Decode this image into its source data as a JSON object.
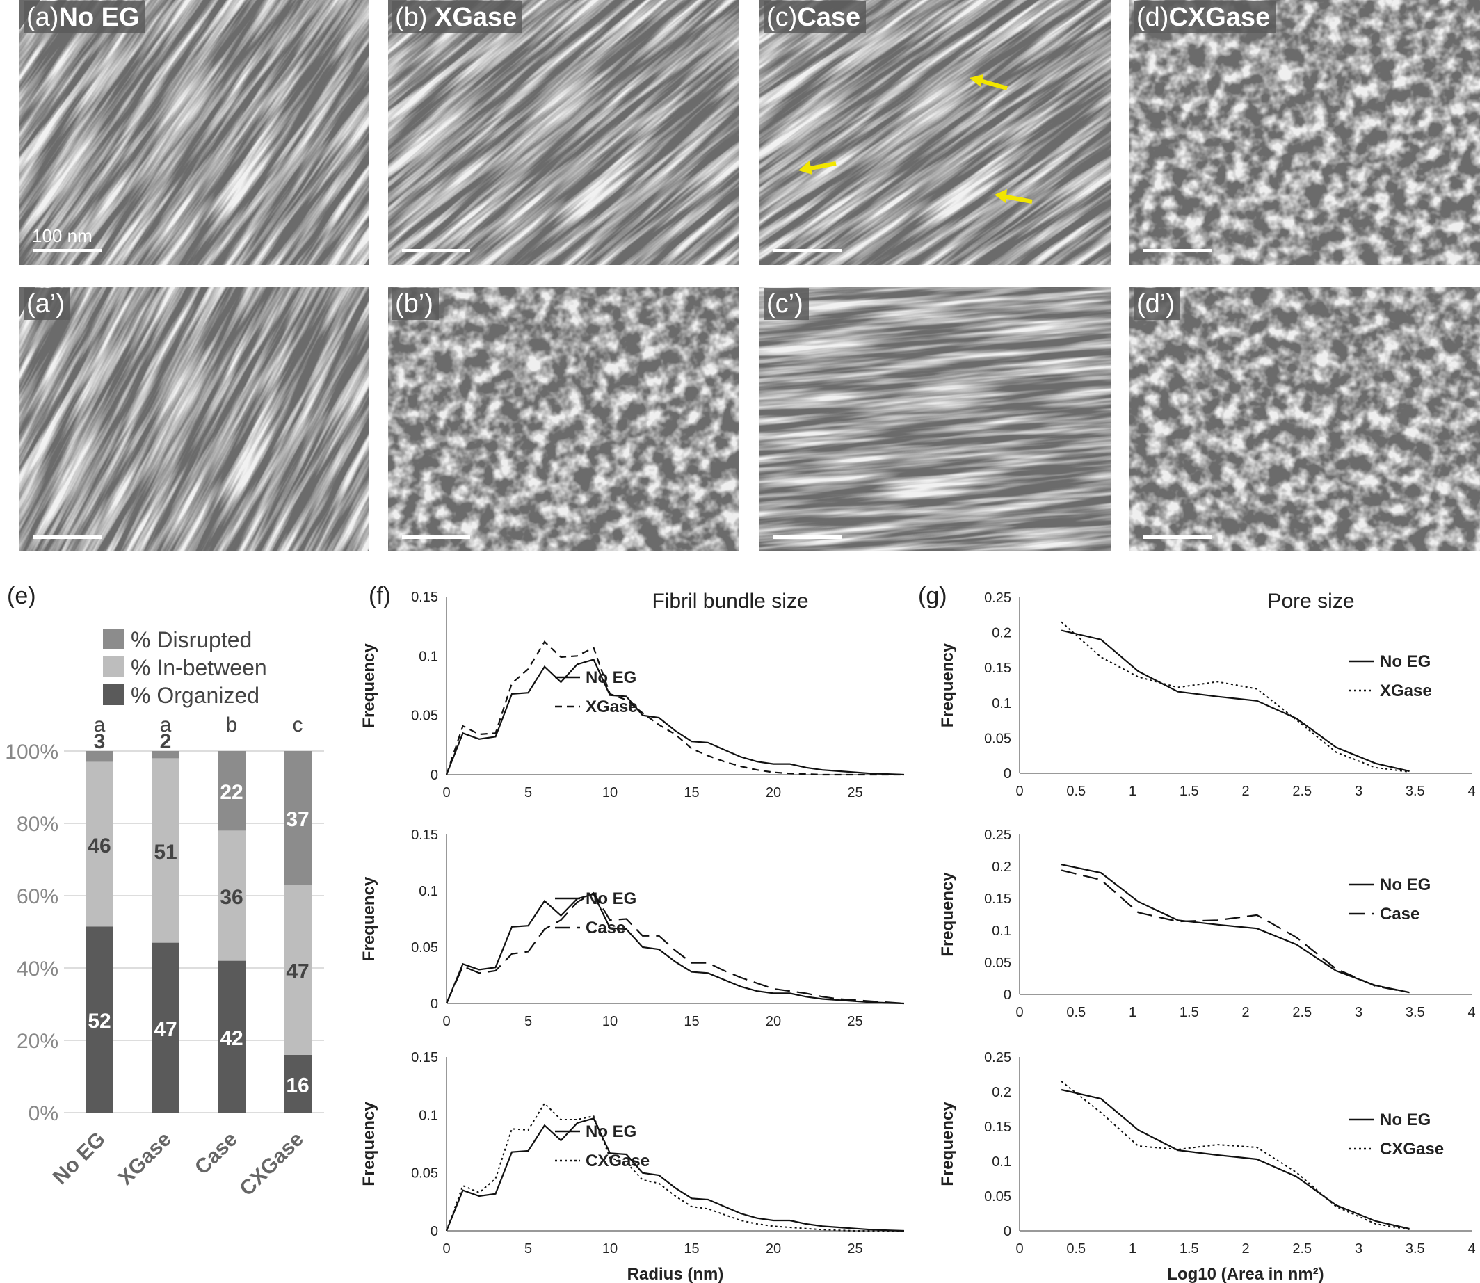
{
  "colors": {
    "disrupted": "#8c8c8c",
    "in_between": "#bdbdbd",
    "organized": "#5a5a5a",
    "label_bg": "#5a5a5a",
    "arrow": "#f2e600"
  },
  "panels": {
    "a": {
      "letter": "(a)",
      "title": "No EG",
      "scale": "100 nm"
    },
    "b": {
      "letter": "(b)",
      "title": "XGase"
    },
    "c": {
      "letter": "(c)",
      "title": "Case"
    },
    "d": {
      "letter": "(d)",
      "title": "CXGase"
    },
    "a2": {
      "letter": "(a’)"
    },
    "b2": {
      "letter": "(b’)"
    },
    "c2": {
      "letter": "(c’)"
    },
    "d2": {
      "letter": "(d’)"
    }
  },
  "fig_letters": {
    "e": "(e)",
    "f": "(f)",
    "g": "(g)"
  },
  "chart_data": [
    {
      "id": "e",
      "type": "bar",
      "stacked": true,
      "categories": [
        "No EG",
        "XGase",
        "Case",
        "CXGase"
      ],
      "significance_letters": [
        "a",
        "a",
        "b",
        "c"
      ],
      "series": [
        {
          "name": "% Organized",
          "values": [
            52,
            47,
            42,
            16
          ]
        },
        {
          "name": "% In-between",
          "values": [
            46,
            51,
            36,
            47
          ]
        },
        {
          "name": "% Disrupted",
          "values": [
            3,
            2,
            22,
            37
          ]
        }
      ],
      "yticks": [
        "0%",
        "20%",
        "40%",
        "60%",
        "80%",
        "100%"
      ],
      "ylim": [
        0,
        100
      ],
      "legend_placement": "top"
    },
    {
      "id": "f1",
      "type": "line",
      "title": "Fibril bundle size",
      "xlabel": "Radius (nm)",
      "ylabel": "Frequency",
      "xlim": [
        0,
        28
      ],
      "ylim": [
        0,
        0.15
      ],
      "xticks": [
        "0",
        "5",
        "10",
        "15",
        "20",
        "25"
      ],
      "yticks": [
        "0",
        "0.05",
        "0.1",
        "0.15"
      ],
      "legend_placement": "right",
      "series": [
        {
          "name": "No EG",
          "dash": "solid",
          "x": [
            0,
            1,
            2,
            3,
            4,
            5,
            6,
            7,
            8,
            9,
            10,
            11,
            12,
            13,
            14,
            15,
            16,
            17,
            18,
            19,
            20,
            21,
            22,
            23,
            24,
            25,
            26,
            27,
            28
          ],
          "y": [
            0,
            0.035,
            0.03,
            0.032,
            0.068,
            0.069,
            0.091,
            0.078,
            0.093,
            0.097,
            0.067,
            0.066,
            0.05,
            0.048,
            0.037,
            0.028,
            0.027,
            0.021,
            0.015,
            0.011,
            0.009,
            0.009,
            0.006,
            0.004,
            0.003,
            0.002,
            0.001,
            0.0005,
            0
          ]
        },
        {
          "name": "XGase",
          "dash": "dashed",
          "x": [
            0,
            1,
            2,
            3,
            4,
            5,
            6,
            7,
            8,
            9,
            10,
            11,
            12,
            13,
            14,
            15,
            16,
            17,
            18,
            19,
            20,
            21,
            22,
            23,
            24,
            25,
            26,
            27,
            28
          ],
          "y": [
            0,
            0.041,
            0.034,
            0.035,
            0.077,
            0.089,
            0.112,
            0.099,
            0.1,
            0.107,
            0.068,
            0.063,
            0.052,
            0.042,
            0.034,
            0.022,
            0.016,
            0.011,
            0.007,
            0.004,
            0.002,
            0.001,
            0.0005,
            0,
            0,
            0,
            0,
            0,
            0
          ]
        }
      ]
    },
    {
      "id": "f2",
      "type": "line",
      "xlabel": "Radius (nm)",
      "ylabel": "Frequency",
      "xlim": [
        0,
        28
      ],
      "ylim": [
        0,
        0.15
      ],
      "xticks": [
        "0",
        "5",
        "10",
        "15",
        "20",
        "25"
      ],
      "yticks": [
        "0",
        "0.05",
        "0.1",
        "0.15"
      ],
      "legend_placement": "right",
      "series": [
        {
          "name": "No EG",
          "dash": "solid",
          "x": [
            0,
            1,
            2,
            3,
            4,
            5,
            6,
            7,
            8,
            9,
            10,
            11,
            12,
            13,
            14,
            15,
            16,
            17,
            18,
            19,
            20,
            21,
            22,
            23,
            24,
            25,
            26,
            27,
            28
          ],
          "y": [
            0,
            0.035,
            0.03,
            0.032,
            0.068,
            0.069,
            0.091,
            0.078,
            0.093,
            0.097,
            0.067,
            0.066,
            0.05,
            0.048,
            0.037,
            0.028,
            0.027,
            0.021,
            0.015,
            0.011,
            0.009,
            0.009,
            0.006,
            0.004,
            0.003,
            0.002,
            0.001,
            0.0005,
            0
          ]
        },
        {
          "name": "Case",
          "dash": "longdash",
          "x": [
            0,
            1,
            2,
            3,
            4,
            5,
            6,
            7,
            8,
            9,
            10,
            11,
            12,
            13,
            14,
            15,
            16,
            17,
            18,
            19,
            20,
            21,
            22,
            23,
            24,
            25,
            26,
            27,
            28
          ],
          "y": [
            0,
            0.033,
            0.027,
            0.029,
            0.044,
            0.046,
            0.066,
            0.074,
            0.09,
            0.098,
            0.074,
            0.075,
            0.06,
            0.06,
            0.047,
            0.036,
            0.036,
            0.029,
            0.023,
            0.018,
            0.013,
            0.011,
            0.009,
            0.006,
            0.004,
            0.003,
            0.002,
            0.001,
            0
          ]
        }
      ]
    },
    {
      "id": "f3",
      "type": "line",
      "xlabel": "Radius (nm)",
      "ylabel": "Frequency",
      "xlim": [
        0,
        28
      ],
      "ylim": [
        0,
        0.15
      ],
      "xticks": [
        "0",
        "5",
        "10",
        "15",
        "20",
        "25"
      ],
      "yticks": [
        "0",
        "0.05",
        "0.1",
        "0.15"
      ],
      "legend_placement": "right",
      "series": [
        {
          "name": "No EG",
          "dash": "solid",
          "x": [
            0,
            1,
            2,
            3,
            4,
            5,
            6,
            7,
            8,
            9,
            10,
            11,
            12,
            13,
            14,
            15,
            16,
            17,
            18,
            19,
            20,
            21,
            22,
            23,
            24,
            25,
            26,
            27,
            28
          ],
          "y": [
            0,
            0.035,
            0.03,
            0.032,
            0.068,
            0.069,
            0.091,
            0.078,
            0.093,
            0.097,
            0.067,
            0.066,
            0.05,
            0.048,
            0.037,
            0.028,
            0.027,
            0.021,
            0.015,
            0.011,
            0.009,
            0.009,
            0.006,
            0.004,
            0.003,
            0.002,
            0.001,
            0.0005,
            0
          ]
        },
        {
          "name": "CXGase",
          "dash": "dotted",
          "x": [
            0,
            1,
            2,
            3,
            4,
            5,
            6,
            7,
            8,
            9,
            10,
            11,
            12,
            13,
            14,
            15,
            16,
            17,
            18,
            19,
            20,
            21,
            22,
            23,
            24,
            25,
            26,
            27,
            28
          ],
          "y": [
            0,
            0.039,
            0.033,
            0.045,
            0.088,
            0.087,
            0.11,
            0.096,
            0.096,
            0.099,
            0.063,
            0.059,
            0.044,
            0.041,
            0.03,
            0.021,
            0.019,
            0.014,
            0.009,
            0.006,
            0.004,
            0.003,
            0.002,
            0.001,
            0.0005,
            0,
            0,
            0,
            0
          ]
        }
      ]
    },
    {
      "id": "g1",
      "type": "line",
      "title": "Pore size",
      "xlabel": "Log10 (Area in nm²)",
      "ylabel": "Frequency",
      "xlim": [
        0,
        4
      ],
      "ylim": [
        0,
        0.25
      ],
      "xticks": [
        "0",
        "0.5",
        "1",
        "1.5",
        "2",
        "2.5",
        "3",
        "3.5",
        "4"
      ],
      "yticks": [
        "0",
        "0.05",
        "0.1",
        "0.15",
        "0.2",
        "0.25"
      ],
      "legend_placement": "right",
      "series": [
        {
          "name": "No EG",
          "dash": "solid",
          "x": [
            0.37,
            0.72,
            1.05,
            1.4,
            1.75,
            2.1,
            2.45,
            2.8,
            3.15,
            3.45
          ],
          "y": [
            0.203,
            0.19,
            0.145,
            0.116,
            0.109,
            0.103,
            0.078,
            0.037,
            0.014,
            0.003
          ]
        },
        {
          "name": "XGase",
          "dash": "dotted",
          "x": [
            0.37,
            0.72,
            1.05,
            1.4,
            1.75,
            2.1,
            2.45,
            2.8,
            3.15,
            3.45
          ],
          "y": [
            0.215,
            0.165,
            0.137,
            0.122,
            0.13,
            0.12,
            0.076,
            0.03,
            0.008,
            0.002
          ]
        }
      ]
    },
    {
      "id": "g2",
      "type": "line",
      "xlabel": "Log10 (Area in nm²)",
      "ylabel": "Frequency",
      "xlim": [
        0,
        4
      ],
      "ylim": [
        0,
        0.25
      ],
      "xticks": [
        "0",
        "0.5",
        "1",
        "1.5",
        "2",
        "2.5",
        "3",
        "3.5",
        "4"
      ],
      "yticks": [
        "0",
        "0.05",
        "0.1",
        "0.15",
        "0.2",
        "0.25"
      ],
      "legend_placement": "right",
      "series": [
        {
          "name": "No EG",
          "dash": "solid",
          "x": [
            0.37,
            0.72,
            1.05,
            1.4,
            1.75,
            2.1,
            2.45,
            2.8,
            3.15,
            3.45
          ],
          "y": [
            0.203,
            0.19,
            0.145,
            0.116,
            0.109,
            0.103,
            0.078,
            0.037,
            0.014,
            0.003
          ]
        },
        {
          "name": "Case",
          "dash": "longdash",
          "x": [
            0.37,
            0.72,
            1.05,
            1.4,
            1.75,
            2.1,
            2.45,
            2.8,
            3.15,
            3.45
          ],
          "y": [
            0.194,
            0.179,
            0.128,
            0.114,
            0.116,
            0.124,
            0.089,
            0.04,
            0.013,
            0.003
          ]
        }
      ]
    },
    {
      "id": "g3",
      "type": "line",
      "xlabel": "Log10 (Area in nm²)",
      "ylabel": "Frequency",
      "xlim": [
        0,
        4
      ],
      "ylim": [
        0,
        0.25
      ],
      "xticks": [
        "0",
        "0.5",
        "1",
        "1.5",
        "2",
        "2.5",
        "3",
        "3.5",
        "4"
      ],
      "yticks": [
        "0",
        "0.05",
        "0.1",
        "0.15",
        "0.2",
        "0.25"
      ],
      "legend_placement": "right",
      "series": [
        {
          "name": "No EG",
          "dash": "solid",
          "x": [
            0.37,
            0.72,
            1.05,
            1.4,
            1.75,
            2.1,
            2.45,
            2.8,
            3.15,
            3.45
          ],
          "y": [
            0.203,
            0.19,
            0.145,
            0.116,
            0.109,
            0.103,
            0.078,
            0.037,
            0.014,
            0.003
          ]
        },
        {
          "name": "CXGase",
          "dash": "dotted",
          "x": [
            0.37,
            0.72,
            1.05,
            1.4,
            1.75,
            2.1,
            2.45,
            2.8,
            3.15,
            3.45
          ],
          "y": [
            0.215,
            0.17,
            0.122,
            0.117,
            0.124,
            0.12,
            0.084,
            0.035,
            0.01,
            0.002
          ]
        }
      ]
    }
  ]
}
